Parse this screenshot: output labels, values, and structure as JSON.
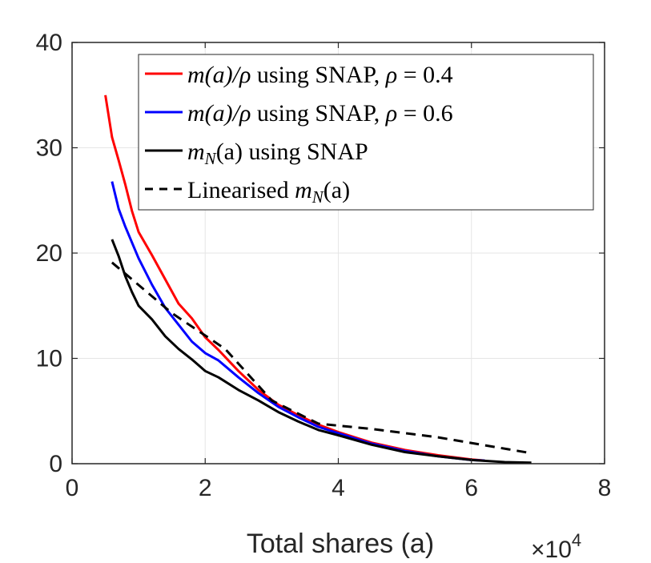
{
  "chart_data": {
    "type": "line",
    "title": "",
    "xlabel": "Total shares (a)",
    "ylabel": "",
    "x_multiplier_label": "×10",
    "x_multiplier_exp": "4",
    "xlim": [
      0,
      8
    ],
    "ylim": [
      0,
      40
    ],
    "xticks": [
      0,
      2,
      4,
      6,
      8
    ],
    "xtick_labels": [
      "0",
      "2",
      "4",
      "6",
      "8"
    ],
    "yticks": [
      0,
      10,
      20,
      30,
      40
    ],
    "ytick_labels": [
      "0",
      "10",
      "20",
      "30",
      "40"
    ],
    "grid": true,
    "legend_position": "top-right",
    "series": [
      {
        "name": "m(a)/ρ using SNAP, ρ = 0.4",
        "legend_math": "m(a)/ρ",
        "legend_rest": " using SNAP, ",
        "legend_math2": "ρ",
        "legend_tail": " = 0.4",
        "color": "#ff0000",
        "dash": "solid",
        "x": [
          0.5,
          0.6,
          0.7,
          0.8,
          0.9,
          1.0,
          1.2,
          1.4,
          1.6,
          1.8,
          2.0,
          2.2,
          2.5,
          2.8,
          3.1,
          3.4,
          3.7,
          4.0,
          4.5,
          5.0,
          5.5,
          6.0,
          6.2
        ],
        "y": [
          35,
          31,
          28.8,
          26.5,
          24,
          22,
          19.8,
          17.5,
          15.2,
          13.8,
          12,
          10.8,
          8.8,
          7.0,
          5.6,
          4.6,
          3.7,
          3.0,
          2.0,
          1.3,
          0.8,
          0.4,
          0.3
        ]
      },
      {
        "name": "m(a)/ρ using SNAP, ρ = 0.6",
        "legend_math": "m(a)/ρ",
        "legend_rest": " using SNAP, ",
        "legend_math2": "ρ",
        "legend_tail": " = 0.6",
        "color": "#0000ff",
        "dash": "solid",
        "x": [
          0.6,
          0.7,
          0.8,
          0.9,
          1.0,
          1.2,
          1.4,
          1.6,
          1.8,
          2.0,
          2.2,
          2.5,
          2.8,
          3.1,
          3.4,
          3.7,
          4.0,
          4.5,
          5.0,
          5.5,
          6.0,
          6.2
        ],
        "y": [
          26.8,
          24.2,
          22.5,
          21,
          19.5,
          17,
          14.8,
          13.2,
          11.6,
          10.5,
          9.8,
          8.2,
          6.7,
          5.4,
          4.4,
          3.5,
          2.9,
          1.9,
          1.2,
          0.7,
          0.35,
          0.3
        ]
      },
      {
        "name": "m_N(a) using SNAP",
        "legend_math": "m",
        "legend_sub": "N",
        "legend_math_after": "(a)",
        "legend_rest": " using SNAP",
        "color": "#000000",
        "dash": "solid",
        "x": [
          0.6,
          0.7,
          0.8,
          0.9,
          1.0,
          1.2,
          1.4,
          1.6,
          1.8,
          2.0,
          2.2,
          2.5,
          2.8,
          3.1,
          3.4,
          3.7,
          4.0,
          4.5,
          5.0,
          5.5,
          6.0,
          6.5,
          6.9
        ],
        "y": [
          21.3,
          19.7,
          17.8,
          16.3,
          15,
          13.7,
          12.1,
          10.9,
          9.9,
          8.8,
          8.2,
          7.0,
          6.0,
          4.9,
          4.0,
          3.2,
          2.7,
          1.8,
          1.1,
          0.7,
          0.35,
          0.15,
          0.1
        ]
      },
      {
        "name": "Linearised m_N(a)",
        "legend_rest": "Linearised ",
        "legend_math": "m",
        "legend_sub": "N",
        "legend_math_after": "(a)",
        "color": "#000000",
        "dash": "dashed",
        "x": [
          0.6,
          1.5,
          2.3,
          3.0,
          3.7,
          4.5,
          5.5,
          6.9
        ],
        "y": [
          19.1,
          14.3,
          10.9,
          6.0,
          3.8,
          3.3,
          2.5,
          1.0
        ]
      }
    ]
  }
}
